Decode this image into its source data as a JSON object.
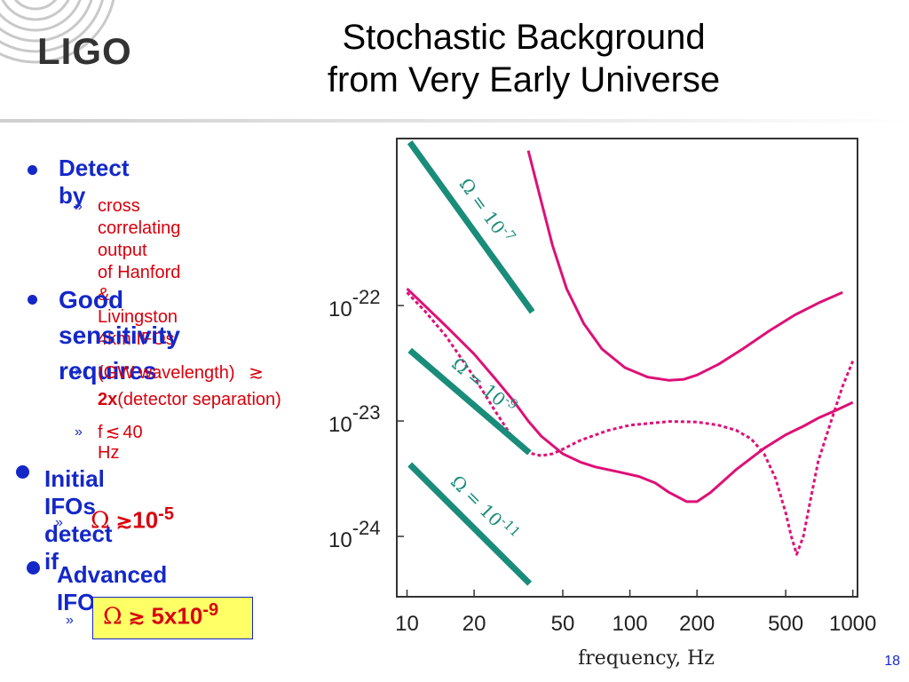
{
  "slide": {
    "title_line1": "Stochastic Background",
    "title_line2": "from Very Early Universe",
    "logo_text": "LIGO",
    "page_number": "18"
  },
  "bullets": {
    "detect_by": "Detect by",
    "cross_correlating_1": "cross correlating output",
    "cross_correlating_2": "of Hanford & Livingston",
    "cross_correlating_3": "4km IFOs",
    "good_sensitivity_1": "Good sensitivity",
    "good_sensitivity_2": "requires",
    "gw_wavelength": "(GW wavelength)",
    "gw_approx": "≳",
    "two_x": "2x",
    "detector_sep": "(detector separation)",
    "f_limit": "f",
    "f_approx": "≲",
    "f_value": "40 Hz",
    "initial_ifos": "Initial IFOs detect if",
    "initial_omega": "Ω",
    "initial_approx": "≳",
    "initial_base": "10",
    "initial_exp": "-5",
    "advanced_ifos": "Advanced IFOs:",
    "advanced_omega": "Ω",
    "advanced_approx": "≳",
    "advanced_base": "5x10",
    "advanced_exp": "-9",
    "sub_marker": "»"
  },
  "chart_data": {
    "type": "line",
    "xlabel": "frequency, Hz",
    "ylabel": "",
    "xscale": "log",
    "yscale": "log",
    "xlim": [
      9,
      1050
    ],
    "ylim": [
      3e-25,
      2.8e-21
    ],
    "x_ticks": [
      10,
      20,
      50,
      100,
      200,
      500,
      1000
    ],
    "x_tick_labels": [
      "10",
      "20",
      "50",
      "100",
      "200",
      "500",
      "1000"
    ],
    "y_ticks": [
      1e-22,
      1e-23,
      1e-24
    ],
    "y_tick_labels": [
      {
        "base": "10",
        "exp": "-22"
      },
      {
        "base": "10",
        "exp": "-23"
      },
      {
        "base": "10",
        "exp": "-24"
      }
    ],
    "grid": false,
    "colors": {
      "curves": "#dd1177",
      "omega_lines": "#1a8c7a"
    },
    "series": [
      {
        "style": "solid",
        "x": [
          35,
          40,
          45,
          52,
          62,
          75,
          95,
          120,
          150,
          175,
          200,
          250,
          320,
          420,
          550,
          700,
          900
        ],
        "y": [
          2.2e-21,
          8e-22,
          3.3e-22,
          1.4e-22,
          7e-23,
          4.2e-23,
          2.9e-23,
          2.4e-23,
          2.25e-23,
          2.3e-23,
          2.5e-23,
          3.1e-23,
          4.2e-23,
          6e-23,
          8.3e-23,
          1.05e-22,
          1.3e-22
        ]
      },
      {
        "style": "solid",
        "x": [
          10,
          12,
          15,
          20,
          25,
          30,
          35,
          40,
          50,
          60,
          70,
          90,
          110,
          130,
          150,
          180,
          200,
          230,
          300,
          400,
          500,
          600,
          700,
          850,
          1000
        ],
        "y": [
          1.4e-22,
          1e-22,
          6.6e-23,
          3.8e-23,
          2.3e-23,
          1.5e-23,
          1e-23,
          7.4e-24,
          5.2e-24,
          4.4e-24,
          4e-24,
          3.6e-24,
          3.3e-24,
          2.9e-24,
          2.4e-24,
          2e-24,
          2e-24,
          2.4e-24,
          3.8e-24,
          5.8e-24,
          7.6e-24,
          9e-24,
          1.06e-23,
          1.25e-23,
          1.45e-23
        ]
      },
      {
        "style": "dashed",
        "x": [
          10,
          12,
          15,
          20,
          25,
          30,
          35,
          40,
          45,
          50,
          60,
          80,
          100,
          150,
          200,
          250,
          300,
          350,
          400,
          450,
          500,
          530,
          560,
          600,
          650,
          700,
          800,
          900,
          1000
        ],
        "y": [
          1.3e-22,
          9e-23,
          5.4e-23,
          2.4e-23,
          1.2e-23,
          7e-24,
          5.3e-24,
          5e-24,
          5.2e-24,
          5.7e-24,
          6.8e-24,
          8.3e-24,
          9.2e-24,
          9.9e-24,
          9.8e-24,
          9.2e-24,
          8.3e-24,
          7e-24,
          5.2e-24,
          3.2e-24,
          1.6e-24,
          1e-24,
          7e-25,
          1e-24,
          2.2e-24,
          4.5e-24,
          1e-23,
          2e-23,
          3.3e-23
        ]
      }
    ],
    "omega_lines": [
      {
        "label": "Ω = 10^-7",
        "text": "Ω = 10",
        "exp": "-7",
        "x": [
          10.3,
          36.5
        ],
        "y": [
          2.6e-21,
          8.8e-23
        ]
      },
      {
        "label": "Ω = 10^-9",
        "text": "Ω = 10",
        "exp": "-9",
        "x": [
          10.3,
          35.4
        ],
        "y": [
          4.1e-23,
          5.3e-24
        ]
      },
      {
        "label": "Ω = 10^-11",
        "text": "Ω = 10",
        "exp": "-11",
        "x": [
          10.3,
          35.5
        ],
        "y": [
          4.2e-24,
          3.9e-25
        ]
      }
    ]
  }
}
